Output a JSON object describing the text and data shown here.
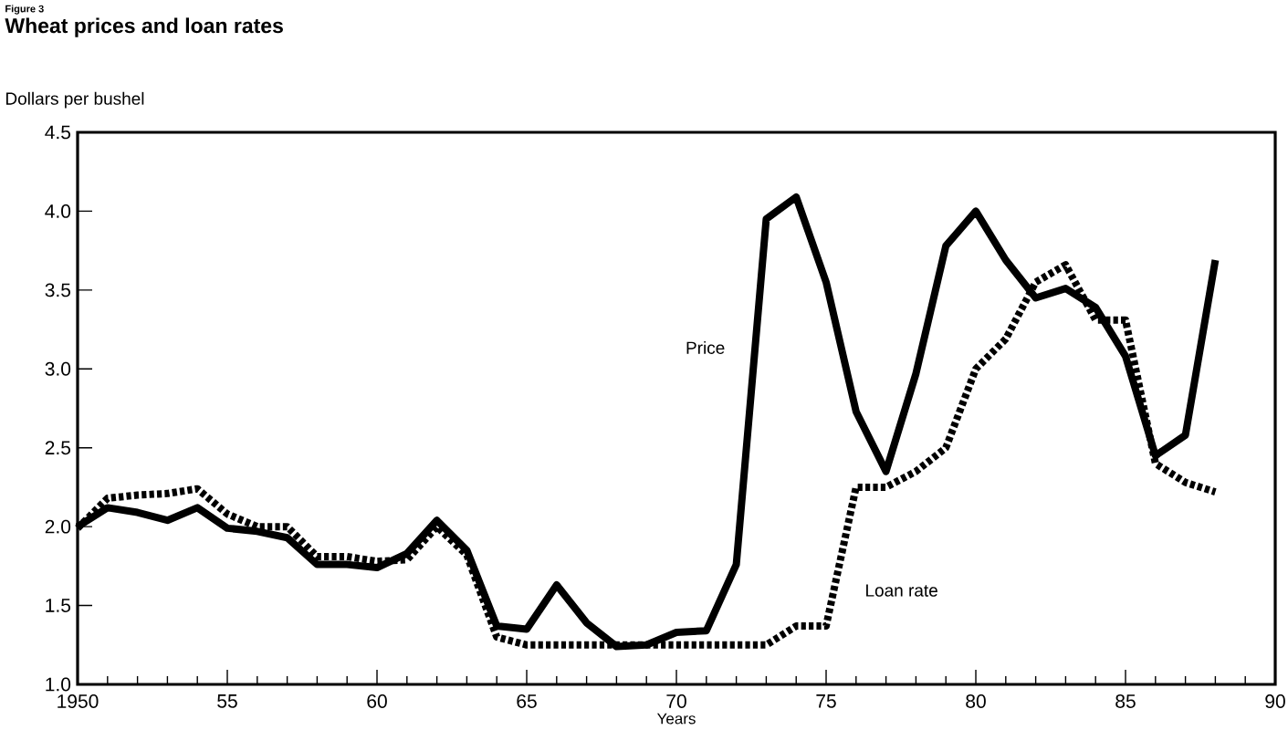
{
  "chart_data": {
    "type": "line",
    "title": "Wheat prices and loan rates",
    "annotations": [
      "Figure 3"
    ],
    "xlabel": "Years",
    "ylabel": "Dollars per bushel",
    "x": [
      1950,
      1951,
      1952,
      1953,
      1954,
      1955,
      1956,
      1957,
      1958,
      1959,
      1960,
      1961,
      1962,
      1963,
      1964,
      1965,
      1966,
      1967,
      1968,
      1969,
      1970,
      1971,
      1972,
      1973,
      1974,
      1975,
      1976,
      1977,
      1978,
      1979,
      1980,
      1981,
      1982,
      1983,
      1984,
      1985,
      1986,
      1987,
      1988
    ],
    "series": [
      {
        "name": "Price",
        "color": "#000000",
        "line_style": "solid",
        "values": [
          2.0,
          2.12,
          2.09,
          2.04,
          2.12,
          1.99,
          1.97,
          1.93,
          1.76,
          1.76,
          1.74,
          1.83,
          2.04,
          1.85,
          1.37,
          1.35,
          1.63,
          1.39,
          1.24,
          1.25,
          1.33,
          1.34,
          1.76,
          3.95,
          4.09,
          3.55,
          2.73,
          2.35,
          2.97,
          3.78,
          4.0,
          3.69,
          3.45,
          3.51,
          3.39,
          3.08,
          2.45,
          2.58,
          3.69
        ]
      },
      {
        "name": "Loan rate",
        "color": "#000000",
        "line_style": "dotted",
        "values": [
          1.99,
          2.18,
          2.2,
          2.21,
          2.24,
          2.08,
          2.0,
          2.0,
          1.81,
          1.81,
          1.78,
          1.79,
          2.0,
          1.82,
          1.3,
          1.25,
          1.25,
          1.25,
          1.25,
          1.25,
          1.25,
          1.25,
          1.25,
          1.25,
          1.37,
          1.37,
          2.25,
          2.25,
          2.35,
          2.5,
          3.0,
          3.19,
          3.55,
          3.66,
          3.31,
          3.31,
          2.4,
          2.28,
          2.22
        ]
      }
    ],
    "xlim": [
      1950,
      1990
    ],
    "ylim": [
      1,
      4.5
    ],
    "xticks": [
      {
        "value": 1950,
        "label": "1950"
      },
      {
        "value": 1951,
        "label": null
      },
      {
        "value": 1952,
        "label": null
      },
      {
        "value": 1953,
        "label": null
      },
      {
        "value": 1954,
        "label": null
      },
      {
        "value": 1955,
        "label": "55"
      },
      {
        "value": 1956,
        "label": null
      },
      {
        "value": 1957,
        "label": null
      },
      {
        "value": 1958,
        "label": null
      },
      {
        "value": 1959,
        "label": null
      },
      {
        "value": 1960,
        "label": "60"
      },
      {
        "value": 1961,
        "label": null
      },
      {
        "value": 1962,
        "label": null
      },
      {
        "value": 1963,
        "label": null
      },
      {
        "value": 1964,
        "label": null
      },
      {
        "value": 1965,
        "label": "65"
      },
      {
        "value": 1966,
        "label": null
      },
      {
        "value": 1967,
        "label": null
      },
      {
        "value": 1968,
        "label": null
      },
      {
        "value": 1969,
        "label": null
      },
      {
        "value": 1970,
        "label": "70"
      },
      {
        "value": 1971,
        "label": null
      },
      {
        "value": 1972,
        "label": null
      },
      {
        "value": 1973,
        "label": null
      },
      {
        "value": 1974,
        "label": null
      },
      {
        "value": 1975,
        "label": "75"
      },
      {
        "value": 1976,
        "label": null
      },
      {
        "value": 1977,
        "label": null
      },
      {
        "value": 1978,
        "label": null
      },
      {
        "value": 1979,
        "label": null
      },
      {
        "value": 1980,
        "label": "80"
      },
      {
        "value": 1981,
        "label": null
      },
      {
        "value": 1982,
        "label": null
      },
      {
        "value": 1983,
        "label": null
      },
      {
        "value": 1984,
        "label": null
      },
      {
        "value": 1985,
        "label": "85"
      },
      {
        "value": 1986,
        "label": null
      },
      {
        "value": 1987,
        "label": null
      },
      {
        "value": 1988,
        "label": null
      },
      {
        "value": 1989,
        "label": null
      },
      {
        "value": 1990,
        "label": "90"
      }
    ],
    "yticks": [
      {
        "value": 1.0,
        "label": "1.0"
      },
      {
        "value": 1.5,
        "label": "1.5"
      },
      {
        "value": 2.0,
        "label": "2.0"
      },
      {
        "value": 2.5,
        "label": "2.5"
      },
      {
        "value": 3.0,
        "label": "3.0"
      },
      {
        "value": 3.5,
        "label": "3.5"
      },
      {
        "value": 4.0,
        "label": "4.0"
      },
      {
        "value": 4.5,
        "label": "4.5"
      }
    ]
  }
}
